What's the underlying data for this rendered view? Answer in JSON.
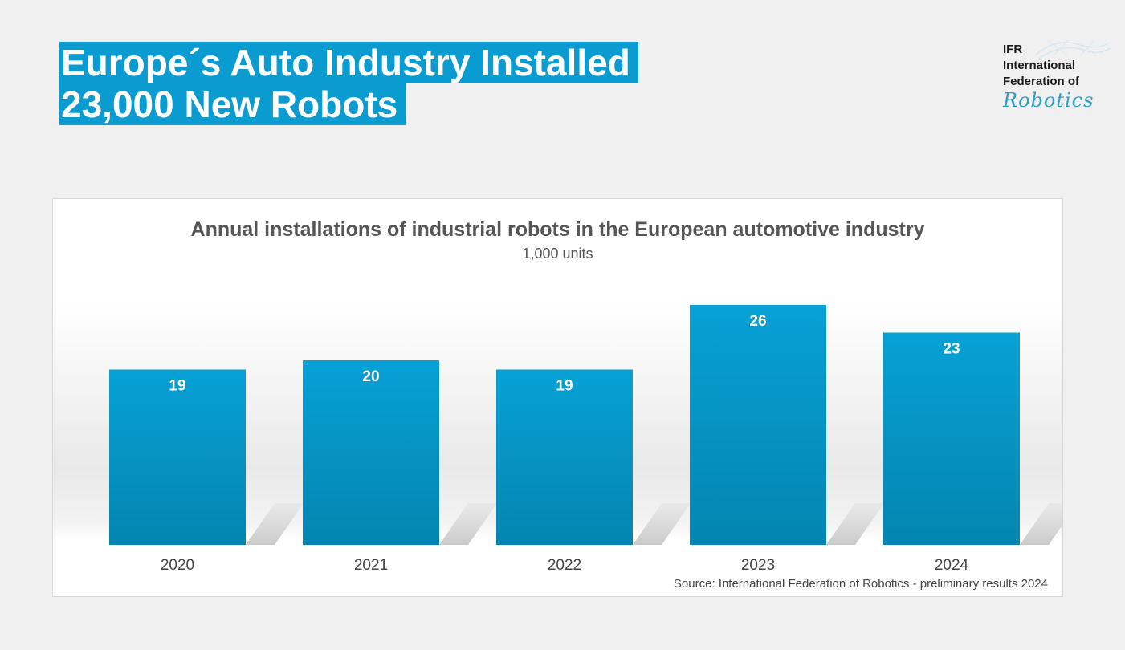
{
  "header": {
    "title_line1": "Europe´s Auto Industry Installed",
    "title_line2": "23,000 New Robots"
  },
  "logo": {
    "line1": "IFR",
    "line2": "International",
    "line3": "Federation of",
    "script": "Robotics"
  },
  "colors": {
    "accent": "#0a9bd1",
    "bar_top": "#07a1d5",
    "bar_bottom": "#0385b0",
    "text_gray": "#555555"
  },
  "chart_data": {
    "type": "bar",
    "title": "Annual installations of industrial robots in the European automotive industry",
    "subtitle": "1,000 units",
    "categories": [
      "2020",
      "2021",
      "2022",
      "2023",
      "2024"
    ],
    "values": [
      19,
      20,
      19,
      26,
      23
    ],
    "data_labels": [
      "19",
      "20",
      "19",
      "26",
      "23"
    ],
    "xlabel": "",
    "ylabel": "",
    "ylim": [
      0,
      30
    ],
    "grid": false,
    "source": "Source: International Federation of Robotics - preliminary results 2024"
  }
}
